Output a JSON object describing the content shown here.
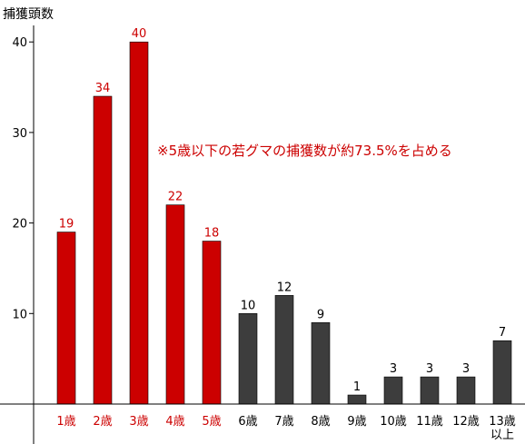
{
  "chart_data": {
    "type": "bar",
    "ylabel": "捕獲頭数",
    "ylim": [
      0,
      44
    ],
    "yticks": [
      10,
      20,
      30,
      40
    ],
    "categories": [
      "1歳",
      "2歳",
      "3歳",
      "4歳",
      "5歳",
      "6歳",
      "7歳",
      "8歳",
      "9歳",
      "10歳",
      "11歳",
      "12歳",
      "13歳\n以上"
    ],
    "values": [
      19,
      34,
      40,
      22,
      18,
      10,
      12,
      9,
      1,
      3,
      3,
      3,
      7
    ],
    "highlight_count": 5,
    "annotation": "※5歳以下の若グマの捕獲数が約73.5%を占める",
    "grid": false,
    "colors": {
      "highlight_bar": "#cc0000",
      "normal_bar": "#3d3d3d",
      "highlight_text": "#cc0000",
      "normal_text": "#000000"
    }
  }
}
